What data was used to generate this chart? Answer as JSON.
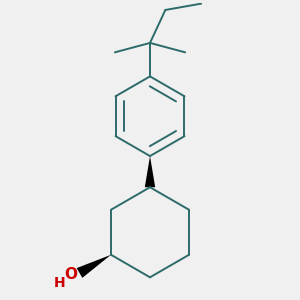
{
  "background_color": "#f0f0f0",
  "bond_color": "#2d6b6b",
  "oh_color": "#cc0000",
  "line_width": 1.4,
  "fig_size": [
    3.0,
    3.0
  ],
  "dpi": 100,
  "xlim": [
    -1.2,
    1.2
  ],
  "ylim": [
    -1.6,
    1.8
  ]
}
